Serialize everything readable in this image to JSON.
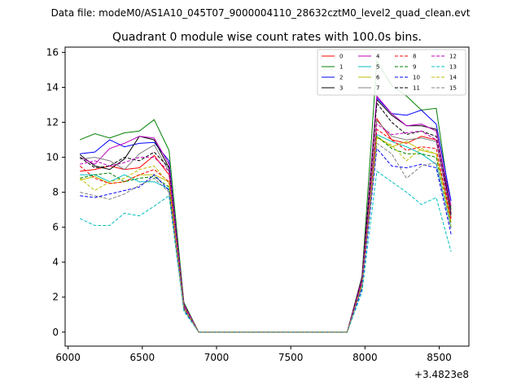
{
  "chart_data": {
    "type": "line",
    "suptitle": "Data file: modeM0/AS1A10_045T07_9000004110_28632cztM0_level2_quad_clean.evt",
    "title": "Quadrant 0 module wise count rates with 100.0s bins.",
    "xlabel": "",
    "ylabel": "",
    "x_offset_label": "+3.4823e8",
    "xlim": [
      5980,
      8700
    ],
    "ylim": [
      -0.8,
      16.3
    ],
    "xticks": [
      6000,
      6500,
      7000,
      7500,
      8000,
      8500
    ],
    "yticks": [
      0,
      2,
      4,
      6,
      8,
      10,
      12,
      14,
      16
    ],
    "grid": false,
    "legend_position": "top-right",
    "legend_columns": 4,
    "x": [
      6080,
      6180,
      6280,
      6380,
      6480,
      6580,
      6680,
      6780,
      6880,
      6980,
      7080,
      7180,
      7280,
      7380,
      7480,
      7580,
      7680,
      7780,
      7880,
      7980,
      8080,
      8180,
      8280,
      8380,
      8480,
      8580
    ],
    "series": [
      {
        "name": "0",
        "color": "#ff0000",
        "dash": false,
        "values": [
          9.2,
          9.3,
          9.5,
          9.3,
          9.4,
          10.1,
          9.0,
          1.6,
          0,
          0,
          0,
          0,
          0,
          0,
          0,
          0,
          0,
          0,
          0,
          3.0,
          12.2,
          11.0,
          10.8,
          11.2,
          11.0,
          6.5
        ]
      },
      {
        "name": "1",
        "color": "#008000",
        "dash": false,
        "values": [
          11.0,
          11.35,
          11.1,
          11.4,
          11.5,
          12.15,
          10.4,
          1.7,
          0,
          0,
          0,
          0,
          0,
          0,
          0,
          0,
          0,
          0,
          0,
          3.2,
          15.5,
          14.1,
          13.5,
          12.7,
          12.8,
          7.0
        ]
      },
      {
        "name": "2",
        "color": "#0000ff",
        "dash": false,
        "values": [
          10.2,
          10.3,
          11.0,
          10.6,
          10.8,
          10.85,
          9.8,
          1.5,
          0,
          0,
          0,
          0,
          0,
          0,
          0,
          0,
          0,
          0,
          0,
          3.0,
          13.4,
          12.5,
          12.4,
          12.7,
          11.9,
          7.5
        ]
      },
      {
        "name": "3",
        "color": "#000000",
        "dash": false,
        "values": [
          10.15,
          9.5,
          9.3,
          9.9,
          11.2,
          11.0,
          9.4,
          1.6,
          0,
          0,
          0,
          0,
          0,
          0,
          0,
          0,
          0,
          0,
          0,
          3.1,
          13.3,
          12.4,
          11.8,
          11.8,
          11.6,
          6.8
        ]
      },
      {
        "name": "4",
        "color": "#bf00bf",
        "dash": false,
        "values": [
          10.0,
          9.6,
          10.5,
          10.8,
          11.2,
          11.1,
          9.6,
          1.6,
          0,
          0,
          0,
          0,
          0,
          0,
          0,
          0,
          0,
          0,
          0,
          3.1,
          13.5,
          12.5,
          11.8,
          11.9,
          11.5,
          7.2
        ]
      },
      {
        "name": "5",
        "color": "#00bfbf",
        "dash": false,
        "values": [
          9.0,
          9.0,
          8.6,
          9.0,
          8.6,
          8.6,
          8.2,
          1.3,
          0,
          0,
          0,
          0,
          0,
          0,
          0,
          0,
          0,
          0,
          0,
          2.6,
          11.3,
          10.9,
          10.6,
          10.2,
          9.6,
          6.0
        ]
      },
      {
        "name": "6",
        "color": "#bfbf00",
        "dash": false,
        "values": [
          8.7,
          8.9,
          8.5,
          8.6,
          9.0,
          9.0,
          8.6,
          1.4,
          0,
          0,
          0,
          0,
          0,
          0,
          0,
          0,
          0,
          0,
          0,
          2.7,
          11.2,
          10.6,
          10.9,
          10.4,
          10.2,
          6.3
        ]
      },
      {
        "name": "7",
        "color": "#808080",
        "dash": false,
        "values": [
          9.9,
          10.0,
          9.8,
          9.3,
          10.2,
          10.7,
          9.2,
          1.5,
          0,
          0,
          0,
          0,
          0,
          0,
          0,
          0,
          0,
          0,
          0,
          2.9,
          12.1,
          11.2,
          11.0,
          11.1,
          10.9,
          6.6
        ]
      },
      {
        "name": "8",
        "color": "#ff0000",
        "dash": true,
        "values": [
          9.5,
          8.8,
          8.5,
          8.6,
          9.0,
          9.3,
          8.6,
          1.4,
          0,
          0,
          0,
          0,
          0,
          0,
          0,
          0,
          0,
          0,
          0,
          2.8,
          11.6,
          11.0,
          10.4,
          10.6,
          10.5,
          6.4
        ]
      },
      {
        "name": "9",
        "color": "#008000",
        "dash": true,
        "values": [
          8.8,
          9.0,
          9.1,
          8.6,
          8.8,
          8.9,
          8.3,
          1.4,
          0,
          0,
          0,
          0,
          0,
          0,
          0,
          0,
          0,
          0,
          0,
          2.7,
          11.2,
          10.5,
          10.2,
          10.2,
          10.0,
          6.2
        ]
      },
      {
        "name": "10",
        "color": "#0000ff",
        "dash": true,
        "values": [
          7.8,
          7.7,
          7.9,
          8.1,
          8.3,
          9.0,
          8.1,
          1.3,
          0,
          0,
          0,
          0,
          0,
          0,
          0,
          0,
          0,
          0,
          0,
          2.5,
          10.5,
          9.5,
          9.4,
          9.6,
          9.4,
          5.6
        ]
      },
      {
        "name": "11",
        "color": "#000000",
        "dash": true,
        "values": [
          10.0,
          9.4,
          9.5,
          10.0,
          9.8,
          10.3,
          9.4,
          1.5,
          0,
          0,
          0,
          0,
          0,
          0,
          0,
          0,
          0,
          0,
          0,
          3.0,
          13.1,
          12.0,
          11.3,
          11.5,
          11.2,
          6.7
        ]
      },
      {
        "name": "12",
        "color": "#bf00bf",
        "dash": true,
        "values": [
          9.6,
          9.8,
          9.5,
          9.7,
          10.0,
          10.0,
          9.2,
          1.5,
          0,
          0,
          0,
          0,
          0,
          0,
          0,
          0,
          0,
          0,
          0,
          2.9,
          11.9,
          11.3,
          11.4,
          11.5,
          11.0,
          6.8
        ]
      },
      {
        "name": "13",
        "color": "#00bfbf",
        "dash": true,
        "values": [
          6.5,
          6.1,
          6.1,
          6.8,
          6.65,
          7.2,
          7.8,
          1.2,
          0,
          0,
          0,
          0,
          0,
          0,
          0,
          0,
          0,
          0,
          0,
          2.3,
          9.2,
          8.6,
          8.0,
          7.3,
          7.7,
          4.6
        ]
      },
      {
        "name": "14",
        "color": "#bfbf00",
        "dash": true,
        "values": [
          8.8,
          8.1,
          8.6,
          8.8,
          9.3,
          9.5,
          8.5,
          1.4,
          0,
          0,
          0,
          0,
          0,
          0,
          0,
          0,
          0,
          0,
          0,
          2.7,
          11.1,
          10.7,
          9.8,
          10.5,
          10.2,
          6.1
        ]
      },
      {
        "name": "15",
        "color": "#808080",
        "dash": true,
        "values": [
          8.0,
          7.8,
          7.6,
          7.9,
          8.4,
          8.8,
          8.0,
          1.3,
          0,
          0,
          0,
          0,
          0,
          0,
          0,
          0,
          0,
          0,
          0,
          2.6,
          10.8,
          10.2,
          8.8,
          9.5,
          9.7,
          5.9
        ]
      }
    ]
  }
}
